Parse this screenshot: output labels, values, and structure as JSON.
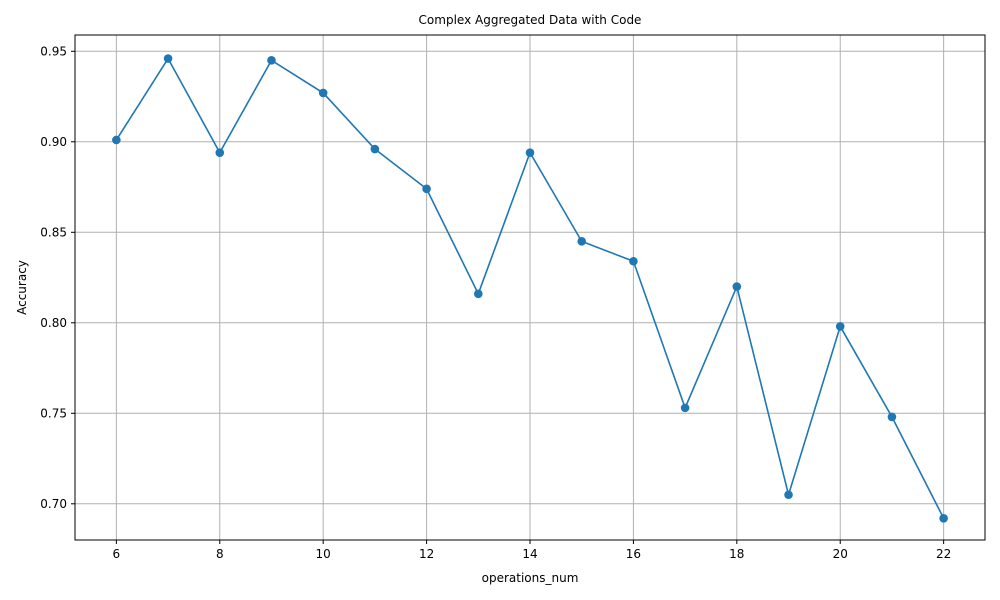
{
  "chart_data": {
    "type": "line",
    "title": "Complex Aggregated Data with Code",
    "xlabel": "operations_num",
    "ylabel": "Accuracy",
    "xlim": [
      5.2,
      22.8
    ],
    "ylim": [
      0.68,
      0.959
    ],
    "xticks": [
      6,
      8,
      10,
      12,
      14,
      16,
      18,
      20,
      22
    ],
    "yticks": [
      0.7,
      0.75,
      0.8,
      0.85,
      0.9,
      0.95
    ],
    "grid": true,
    "series": [
      {
        "x": [
          6,
          7,
          8,
          9,
          10,
          11,
          12,
          13,
          14,
          15,
          16,
          17,
          18,
          19,
          20,
          21,
          22
        ],
        "values": [
          0.901,
          0.946,
          0.894,
          0.945,
          0.927,
          0.896,
          0.874,
          0.816,
          0.894,
          0.845,
          0.834,
          0.753,
          0.82,
          0.705,
          0.798,
          0.748,
          0.692
        ],
        "color": "#1f77b4",
        "marker": "circle"
      }
    ]
  }
}
